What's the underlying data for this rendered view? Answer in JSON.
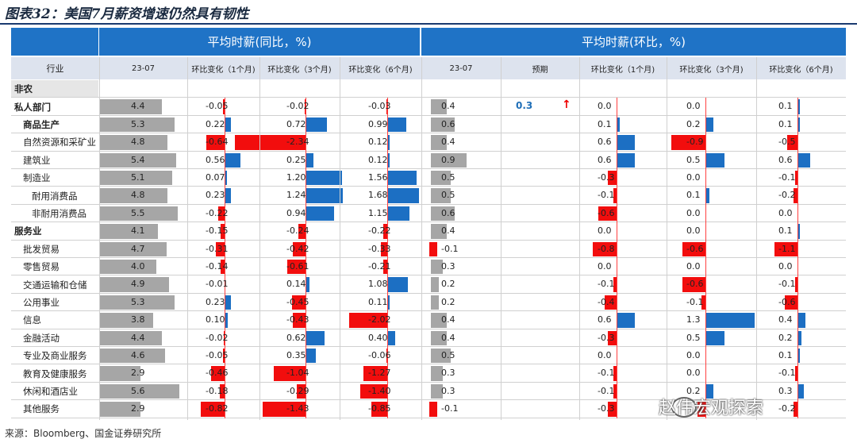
{
  "figure_title": "图表32：美国7月薪资增速仍然具有韧性",
  "source": "来源：Bloomberg、国金证券研究所",
  "watermark": "赵伟宏观探索",
  "header": {
    "group_yoy": "平均时薪(同比，%)",
    "group_mom": "平均时薪(环比，%)",
    "columns": [
      "行业",
      "23-07",
      "环比变化（1个月)",
      "环比变化（3个月)",
      "环比变化（6个月)",
      "23-07",
      "预期",
      "环比变化（1个月)",
      "环比变化（3个月)",
      "环比变化（6个月)"
    ]
  },
  "forecast": {
    "value": "0.3",
    "arrow_icon": "red-up-arrow-icon"
  },
  "colors": {
    "positive": "#1c6fc3",
    "negative": "#f20d0d",
    "level": "#a6a6a6",
    "header": "#1f73c6"
  },
  "rows": [
    {
      "label": "非农",
      "level": 0,
      "bold": true,
      "shade": true,
      "values": null
    },
    {
      "label": "私人部门",
      "level": 0,
      "bold": true,
      "values": [
        "4.4",
        "-0.05",
        "-0.02",
        "-0.03",
        "0.4",
        "0.0",
        "0.0",
        "0.1"
      ]
    },
    {
      "label": "商品生产",
      "level": 1,
      "bold": true,
      "values": [
        "5.3",
        "0.22",
        "0.72",
        "0.99",
        "0.6",
        "0.1",
        "0.2",
        "0.1"
      ]
    },
    {
      "label": "自然资源和采矿业",
      "level": 1,
      "values": [
        "4.8",
        "-0.64",
        "-2.34",
        "0.12",
        "0.4",
        "0.6",
        "-0.9",
        "-0.5"
      ]
    },
    {
      "label": "建筑业",
      "level": 1,
      "values": [
        "5.4",
        "0.56",
        "0.25",
        "0.12",
        "0.9",
        "0.6",
        "0.5",
        "0.6"
      ]
    },
    {
      "label": "制造业",
      "level": 1,
      "values": [
        "5.1",
        "0.07",
        "1.20",
        "1.56",
        "0.5",
        "-0.3",
        "0.0",
        "-0.1"
      ]
    },
    {
      "label": "耐用消费品",
      "level": 2,
      "values": [
        "4.8",
        "0.23",
        "1.24",
        "1.68",
        "0.5",
        "-0.1",
        "0.1",
        "-0.2"
      ]
    },
    {
      "label": "非耐用消费品",
      "level": 2,
      "values": [
        "5.5",
        "-0.22",
        "0.94",
        "1.15",
        "0.6",
        "-0.6",
        "0.0",
        "0.0"
      ]
    },
    {
      "label": "服务业",
      "level": 0,
      "bold": true,
      "values": [
        "4.1",
        "-0.15",
        "-0.24",
        "-0.22",
        "0.4",
        "0.0",
        "0.0",
        "0.1"
      ]
    },
    {
      "label": "批发贸易",
      "level": 1,
      "values": [
        "4.7",
        "-0.31",
        "-0.42",
        "-0.33",
        "-0.1",
        "-0.8",
        "-0.6",
        "-1.1"
      ]
    },
    {
      "label": "零售贸易",
      "level": 1,
      "values": [
        "4.0",
        "-0.14",
        "-0.61",
        "-0.21",
        "0.3",
        "0.0",
        "0.0",
        "0.0"
      ]
    },
    {
      "label": "交通运输和仓储",
      "level": 1,
      "values": [
        "4.9",
        "-0.01",
        "0.14",
        "1.08",
        "0.2",
        "-0.1",
        "-0.6",
        "-0.1"
      ]
    },
    {
      "label": "公用事业",
      "level": 1,
      "values": [
        "5.3",
        "0.23",
        "-0.45",
        "0.11",
        "0.2",
        "-0.4",
        "-0.1",
        "-0.6"
      ]
    },
    {
      "label": "信息",
      "level": 1,
      "values": [
        "3.8",
        "0.10",
        "-0.43",
        "-2.02",
        "0.4",
        "0.6",
        "1.3",
        "0.4"
      ]
    },
    {
      "label": "金融活动",
      "level": 1,
      "values": [
        "4.4",
        "-0.02",
        "0.62",
        "0.40",
        "0.4",
        "-0.3",
        "0.5",
        "0.2"
      ]
    },
    {
      "label": "专业及商业服务",
      "level": 1,
      "values": [
        "4.6",
        "-0.05",
        "0.35",
        "-0.06",
        "0.5",
        "0.0",
        "0.0",
        "0.1"
      ]
    },
    {
      "label": "教育及健康服务",
      "level": 1,
      "values": [
        "2.9",
        "-0.46",
        "-1.04",
        "-1.27",
        "0.3",
        "-0.1",
        "0.0",
        "-0.1"
      ]
    },
    {
      "label": "休闲和酒店业",
      "level": 1,
      "values": [
        "5.6",
        "-0.18",
        "-0.29",
        "-1.40",
        "0.3",
        "-0.1",
        "0.2",
        "0.3"
      ]
    },
    {
      "label": "其他服务",
      "level": 1,
      "values": [
        "2.9",
        "-0.82",
        "-1.43",
        "-0.85",
        "-0.1",
        "-0.3",
        "-0.2",
        "-0.2"
      ]
    }
  ]
}
